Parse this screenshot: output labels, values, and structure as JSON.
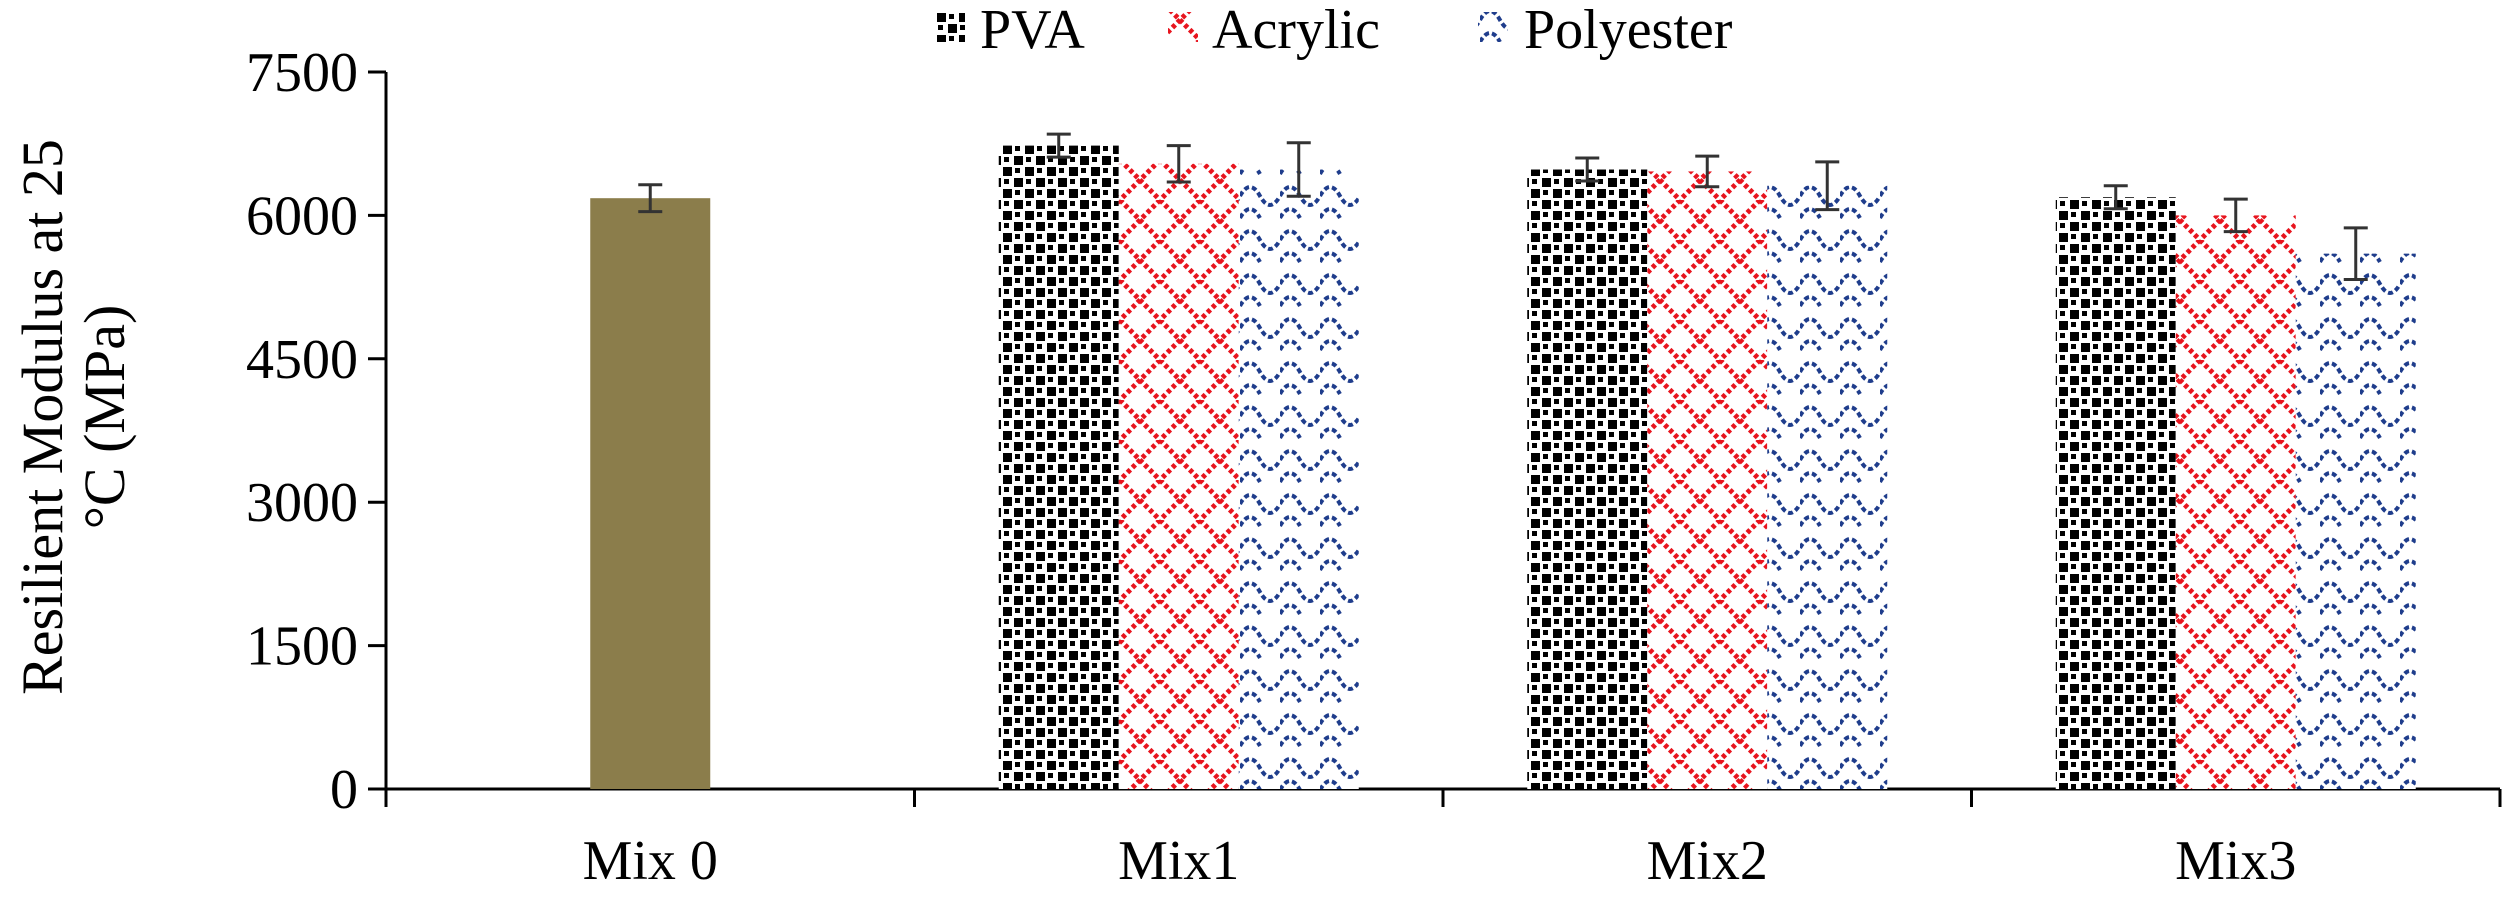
{
  "chart_data": {
    "type": "bar",
    "title": "",
    "xlabel": "",
    "ylabel": "Resilient Modulus at 25 °C (MPa)",
    "ylabel_lines": [
      "Resilient Modulus at 25",
      "°C (MPa)"
    ],
    "ylim": [
      0,
      7500
    ],
    "yticks": [
      0,
      1500,
      3000,
      4500,
      6000,
      7500
    ],
    "categories": [
      "Mix 0",
      "Mix1",
      "Mix2",
      "Mix3"
    ],
    "legend_position": "top",
    "baseline": {
      "name": "Mix 0",
      "category": "Mix 0",
      "value": 6180,
      "error": 140,
      "color": "#8b7d4b"
    },
    "series": [
      {
        "name": "PVA",
        "pattern": "squares",
        "color": "#000000",
        "values": [
          null,
          6730,
          6480,
          6190
        ],
        "errors": [
          null,
          120,
          120,
          120
        ]
      },
      {
        "name": "Acrylic",
        "pattern": "lattice",
        "color": "#e8141e",
        "values": [
          null,
          6540,
          6460,
          6000
        ],
        "errors": [
          null,
          190,
          160,
          170
        ]
      },
      {
        "name": "Polyester",
        "pattern": "scallop",
        "color": "#1f3d8c",
        "values": [
          null,
          6480,
          6310,
          5600
        ],
        "errors": [
          null,
          280,
          250,
          270
        ]
      }
    ]
  }
}
